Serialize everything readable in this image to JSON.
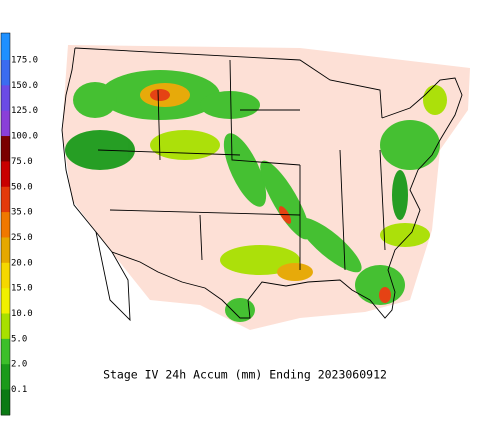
{
  "legend": [
    {
      "label": "175.0",
      "color": "#3b6cf0"
    },
    {
      "label": "150.0",
      "color": "#6b4be6"
    },
    {
      "label": "125.0",
      "color": "#8a3fd8"
    },
    {
      "label": "100.0",
      "color": "#7a0000"
    },
    {
      "label": "75.0",
      "color": "#c80000"
    },
    {
      "label": "50.0",
      "color": "#e43a0a"
    },
    {
      "label": "35.0",
      "color": "#f07800"
    },
    {
      "label": "25.0",
      "color": "#e6a800"
    },
    {
      "label": "20.0",
      "color": "#f5d800"
    },
    {
      "label": "15.0",
      "color": "#f0f000"
    },
    {
      "label": "10.0",
      "color": "#a8e000"
    },
    {
      "label": "5.0",
      "color": "#3cbf2a"
    },
    {
      "label": "2.0",
      "color": "#1a9a1a"
    },
    {
      "label": "0.1",
      "color": "#0a7a14"
    }
  ],
  "caption": "Stage IV 24h Accum (mm) Ending 2023060912"
}
